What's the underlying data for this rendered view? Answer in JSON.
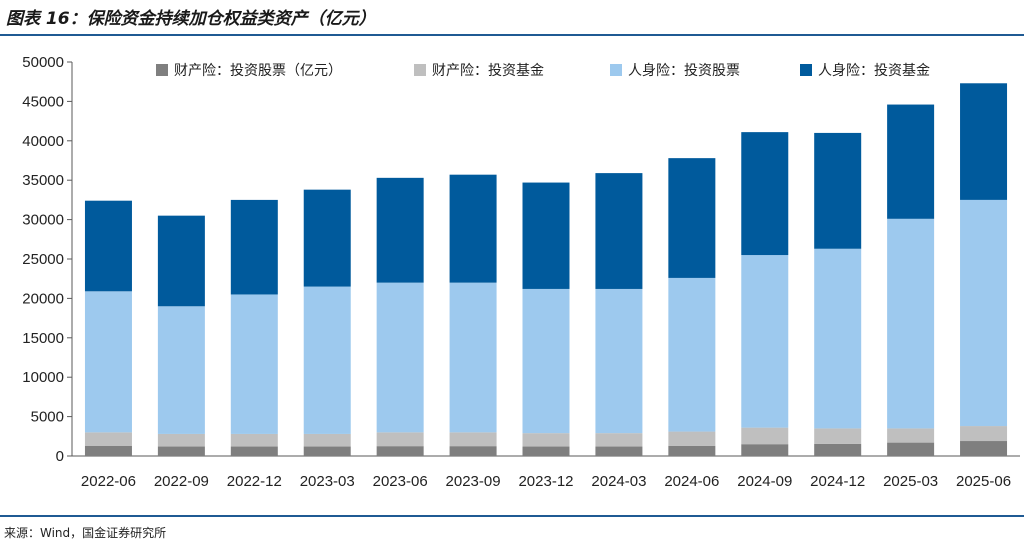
{
  "title": "图表 16：保险资金持续加仓权益类资产（亿元）",
  "source": "来源：Wind，国金证券研究所",
  "chart_data": {
    "type": "bar",
    "stacked": true,
    "categories": [
      "2022-06",
      "2022-09",
      "2022-12",
      "2023-03",
      "2023-06",
      "2023-09",
      "2023-12",
      "2024-03",
      "2024-06",
      "2024-09",
      "2024-12",
      "2025-03",
      "2025-06"
    ],
    "series": [
      {
        "name": "财产险：投资股票（亿元）",
        "color": "#7f7f7f",
        "values": [
          1300,
          1200,
          1200,
          1200,
          1250,
          1250,
          1200,
          1200,
          1300,
          1500,
          1550,
          1700,
          1900
        ]
      },
      {
        "name": "财产险：投资基金",
        "color": "#bfbfbf",
        "values": [
          1700,
          1600,
          1600,
          1600,
          1750,
          1750,
          1700,
          1700,
          1800,
          2100,
          1950,
          1800,
          1900
        ]
      },
      {
        "name": "人身险：投资股票",
        "color": "#9dc9ee",
        "values": [
          17900,
          16200,
          17700,
          18700,
          19000,
          19000,
          18300,
          18300,
          19500,
          21900,
          22800,
          26600,
          28700
        ]
      },
      {
        "name": "人身险：投资基金",
        "color": "#005a9c",
        "values": [
          11500,
          11500,
          12000,
          12300,
          13300,
          13700,
          13500,
          14700,
          15200,
          15600,
          14700,
          14500,
          14800
        ]
      }
    ],
    "ylim": [
      0,
      50000
    ],
    "yticks": [
      0,
      5000,
      10000,
      15000,
      20000,
      25000,
      30000,
      35000,
      40000,
      45000,
      50000
    ],
    "legend": "top",
    "grid": false
  }
}
